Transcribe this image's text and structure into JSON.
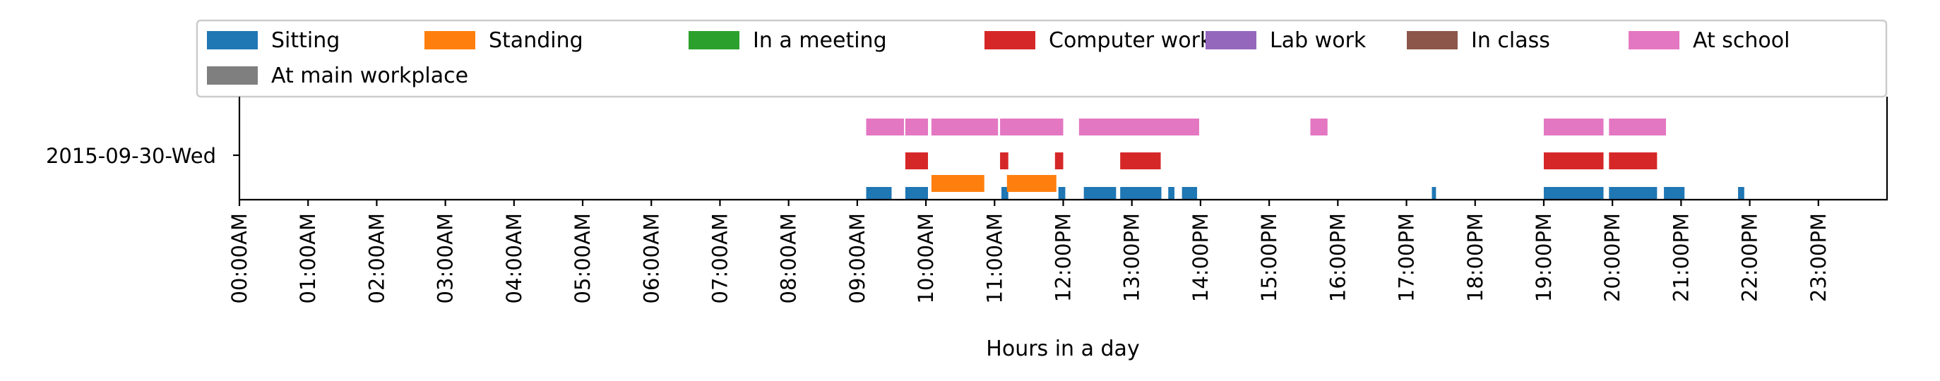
{
  "chart_data": {
    "type": "timeline",
    "xlabel": "Hours in a day",
    "xlim": [
      0,
      24
    ],
    "xticks": [
      {
        "value": 0,
        "label": "00:00AM"
      },
      {
        "value": 1,
        "label": "01:00AM"
      },
      {
        "value": 2,
        "label": "02:00AM"
      },
      {
        "value": 3,
        "label": "03:00AM"
      },
      {
        "value": 4,
        "label": "04:00AM"
      },
      {
        "value": 5,
        "label": "05:00AM"
      },
      {
        "value": 6,
        "label": "06:00AM"
      },
      {
        "value": 7,
        "label": "07:00AM"
      },
      {
        "value": 8,
        "label": "08:00AM"
      },
      {
        "value": 9,
        "label": "09:00AM"
      },
      {
        "value": 10,
        "label": "10:00AM"
      },
      {
        "value": 11,
        "label": "11:00AM"
      },
      {
        "value": 12,
        "label": "12:00PM"
      },
      {
        "value": 13,
        "label": "13:00PM"
      },
      {
        "value": 14,
        "label": "14:00PM"
      },
      {
        "value": 15,
        "label": "15:00PM"
      },
      {
        "value": 16,
        "label": "16:00PM"
      },
      {
        "value": 17,
        "label": "17:00PM"
      },
      {
        "value": 18,
        "label": "18:00PM"
      },
      {
        "value": 19,
        "label": "19:00PM"
      },
      {
        "value": 20,
        "label": "20:00PM"
      },
      {
        "value": 21,
        "label": "21:00PM"
      },
      {
        "value": 22,
        "label": "22:00PM"
      },
      {
        "value": 23,
        "label": "23:00PM"
      }
    ],
    "day_label": "2015-09-30-Wed",
    "legend_position": "top",
    "series": [
      {
        "name": "Sitting",
        "color": "#1f77b4",
        "lane": 0,
        "intervals": [
          [
            9.13,
            9.5
          ],
          [
            9.7,
            10.03
          ],
          [
            11.1,
            11.2
          ],
          [
            11.93,
            12.03
          ],
          [
            12.3,
            12.77
          ],
          [
            12.83,
            13.43
          ],
          [
            13.53,
            13.62
          ],
          [
            13.73,
            13.95
          ],
          [
            17.37,
            17.43
          ],
          [
            19.0,
            19.87
          ],
          [
            19.95,
            20.65
          ],
          [
            20.75,
            21.05
          ],
          [
            21.83,
            21.92
          ]
        ]
      },
      {
        "name": "Standing",
        "color": "#ff7f0e",
        "lane": 1,
        "intervals": [
          [
            10.08,
            10.85
          ],
          [
            11.18,
            11.9
          ]
        ]
      },
      {
        "name": "In a meeting",
        "color": "#2ca02c",
        "lane": 2,
        "intervals": []
      },
      {
        "name": "Computer work",
        "color": "#d62728",
        "lane": 2,
        "intervals": [
          [
            9.7,
            10.03
          ],
          [
            11.08,
            11.2
          ],
          [
            11.88,
            12.0
          ],
          [
            12.83,
            13.42
          ],
          [
            19.0,
            19.87
          ],
          [
            19.95,
            20.65
          ]
        ]
      },
      {
        "name": "Lab work",
        "color": "#9467bd",
        "lane": 3,
        "intervals": []
      },
      {
        "name": "In class",
        "color": "#8c564b",
        "lane": 3,
        "intervals": []
      },
      {
        "name": "At school",
        "color": "#e377c2",
        "lane": 3,
        "intervals": [
          [
            9.13,
            9.68
          ],
          [
            9.7,
            10.03
          ],
          [
            10.08,
            11.05
          ],
          [
            11.08,
            12.0
          ],
          [
            12.23,
            13.98
          ],
          [
            15.6,
            15.85
          ],
          [
            19.0,
            19.87
          ],
          [
            19.95,
            20.78
          ]
        ]
      },
      {
        "name": "At main workplace",
        "color": "#7f7f7f",
        "lane": 4,
        "intervals": []
      }
    ]
  }
}
